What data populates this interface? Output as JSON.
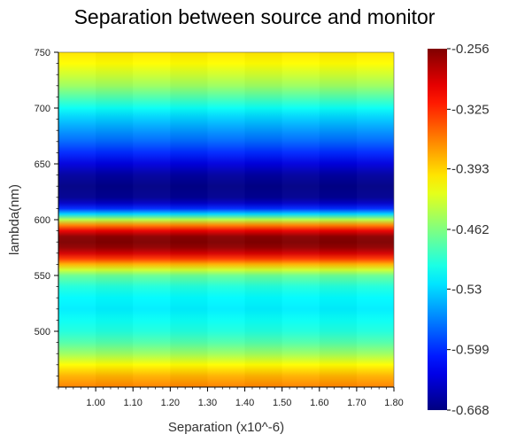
{
  "chart_data": {
    "type": "heatmap",
    "title": "Separation between source and monitor",
    "xlabel": "Separation (x10^-6)",
    "ylabel": "lambda(nm)",
    "xlim": [
      0.9,
      1.8
    ],
    "ylim": [
      450,
      750
    ],
    "x_ticks": [
      "1.00",
      "1.10",
      "1.20",
      "1.30",
      "1.40",
      "1.50",
      "1.60",
      "1.70",
      "1.80"
    ],
    "y_ticks": [
      "500",
      "550",
      "600",
      "650",
      "700",
      "750"
    ],
    "colorbar": {
      "min": -0.668,
      "max": -0.256,
      "labels": [
        "-0.256",
        "-0.325",
        "-0.393",
        "-0.462",
        "-0.53",
        "-0.599",
        "-0.668"
      ],
      "colormap": "jet"
    },
    "lambda_profile": [
      {
        "lambda": 450,
        "value": -0.36
      },
      {
        "lambda": 460,
        "value": -0.38
      },
      {
        "lambda": 470,
        "value": -0.41
      },
      {
        "lambda": 480,
        "value": -0.45
      },
      {
        "lambda": 490,
        "value": -0.48
      },
      {
        "lambda": 500,
        "value": -0.5
      },
      {
        "lambda": 510,
        "value": -0.51
      },
      {
        "lambda": 520,
        "value": -0.52
      },
      {
        "lambda": 530,
        "value": -0.515
      },
      {
        "lambda": 540,
        "value": -0.5
      },
      {
        "lambda": 550,
        "value": -0.47
      },
      {
        "lambda": 555,
        "value": -0.43
      },
      {
        "lambda": 560,
        "value": -0.38
      },
      {
        "lambda": 565,
        "value": -0.33
      },
      {
        "lambda": 570,
        "value": -0.29
      },
      {
        "lambda": 575,
        "value": -0.265
      },
      {
        "lambda": 580,
        "value": -0.256
      },
      {
        "lambda": 585,
        "value": -0.262
      },
      {
        "lambda": 590,
        "value": -0.3
      },
      {
        "lambda": 595,
        "value": -0.36
      },
      {
        "lambda": 600,
        "value": -0.44
      },
      {
        "lambda": 605,
        "value": -0.53
      },
      {
        "lambda": 610,
        "value": -0.6
      },
      {
        "lambda": 615,
        "value": -0.64
      },
      {
        "lambda": 620,
        "value": -0.66
      },
      {
        "lambda": 630,
        "value": -0.665
      },
      {
        "lambda": 640,
        "value": -0.655
      },
      {
        "lambda": 650,
        "value": -0.63
      },
      {
        "lambda": 660,
        "value": -0.6
      },
      {
        "lambda": 670,
        "value": -0.575
      },
      {
        "lambda": 680,
        "value": -0.555
      },
      {
        "lambda": 690,
        "value": -0.535
      },
      {
        "lambda": 700,
        "value": -0.51
      },
      {
        "lambda": 710,
        "value": -0.48
      },
      {
        "lambda": 720,
        "value": -0.45
      },
      {
        "lambda": 730,
        "value": -0.43
      },
      {
        "lambda": 740,
        "value": -0.41
      },
      {
        "lambda": 750,
        "value": -0.4
      }
    ]
  }
}
